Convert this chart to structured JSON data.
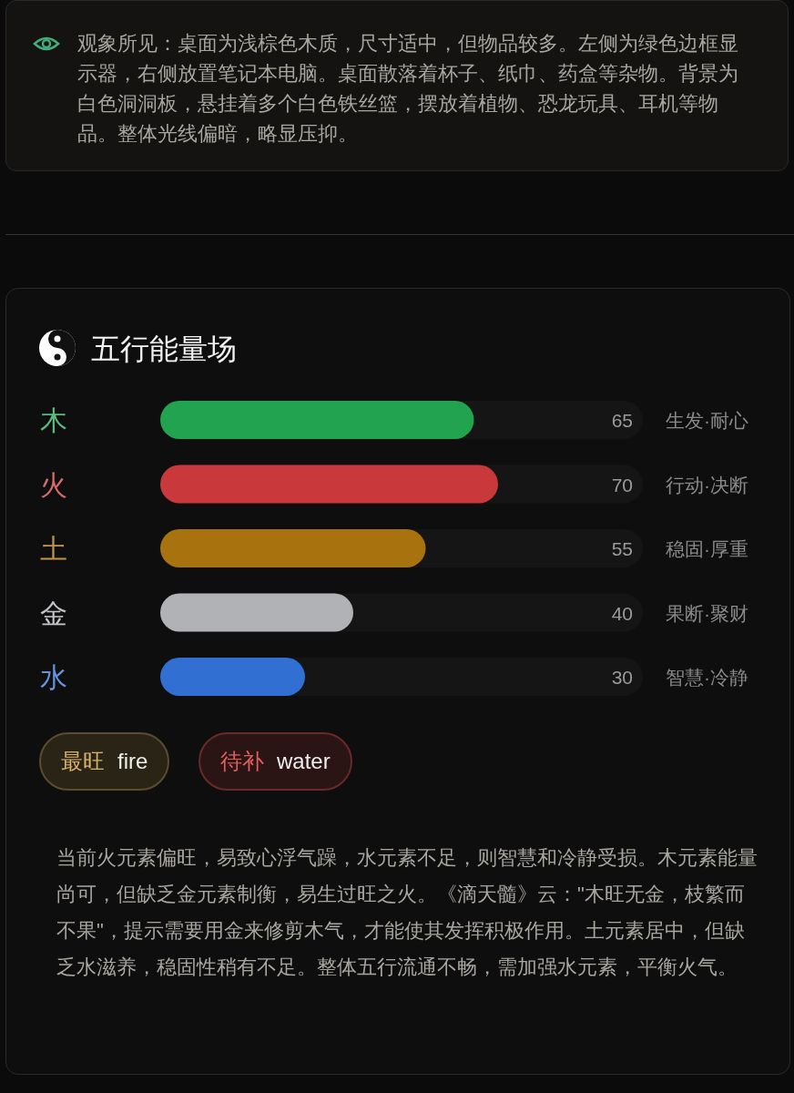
{
  "chart_data": {
    "type": "bar",
    "orientation": "horizontal",
    "title": "五行能量场",
    "categories": [
      "木",
      "火",
      "土",
      "金",
      "水"
    ],
    "values": [
      65,
      70,
      55,
      40,
      30
    ],
    "colors": [
      "#22a34f",
      "#c9393b",
      "#a8720f",
      "#b0b2b6",
      "#3170d2"
    ],
    "xlim": [
      0,
      100
    ],
    "data_labels": true,
    "annotations": [
      "观象所见：桌面为浅棕色木质，尺寸适中，但物品较多。左侧为绿色边框显示器，右侧放置笔记本电脑。桌面散落着杯子、纸巾、药盒等杂物。背景为白色洞洞板，悬挂着多个白色铁丝篮，摆放着植物、恐龙玩具、耳机等物品。整体光线偏暗，略显压抑。",
      "生发·耐心",
      "行动·决断",
      "稳固·厚重",
      "果断·聚财",
      "智慧·冷静",
      "最旺 fire",
      "待补 water",
      "当前火元素偏旺，易致心浮气躁，水元素不足，则智慧和冷静受损。木元素能量尚可，但缺乏金元素制衡，易生过旺之火。《滴天髓》云：\"木旺无金，枝繁而不果\"，提示需要用金来修剪木气，才能使其发挥积极作用。土元素居中，但缺乏水滋养，稳固性稍有不足。整体五行流通不畅，需加强水元素，平衡火气。"
    ]
  }
}
